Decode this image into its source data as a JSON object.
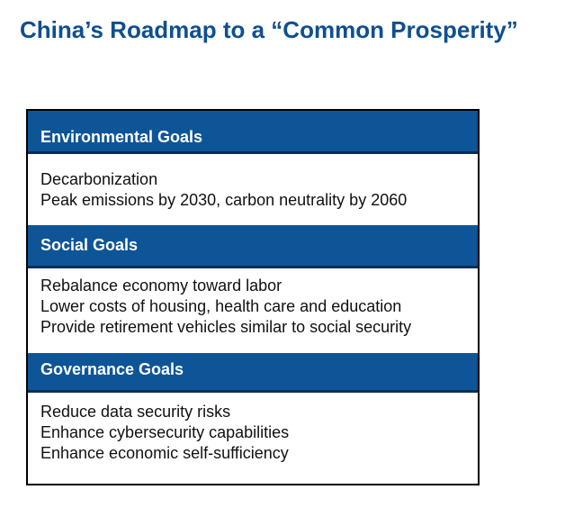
{
  "title": "China’s Roadmap to a “Common Prosperity”",
  "sections": [
    {
      "header": "Environmental Goals",
      "items": [
        "Decarbonization",
        "Peak emissions by 2030, carbon neutrality by 2060"
      ]
    },
    {
      "header": "Social Goals",
      "items": [
        "Rebalance economy toward labor",
        "Lower costs of housing, health care and education",
        "Provide retirement vehicles similar to social security"
      ]
    },
    {
      "header": "Governance Goals",
      "items": [
        "Reduce data security risks",
        "Enhance cybersecurity capabilities",
        "Enhance economic self-sufficiency"
      ]
    }
  ],
  "colors": {
    "title": "#0f4f8f",
    "header_bg": "#0d5597",
    "header_border": "#0a2e57",
    "header_text": "#ffffff",
    "body_text": "#111111"
  }
}
